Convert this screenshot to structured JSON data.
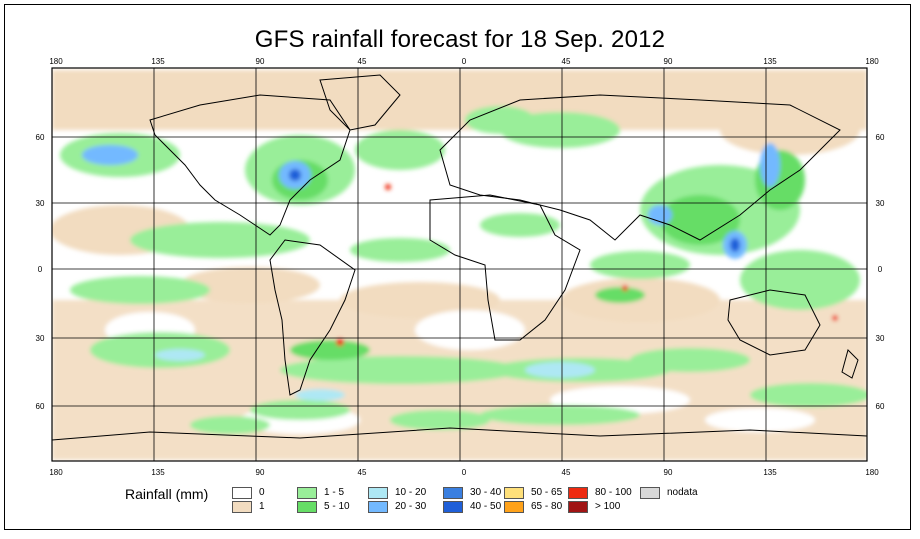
{
  "title": "GFS rainfall forecast for 18 Sep. 2012",
  "longitude_ticks": [
    "180",
    "135",
    "90",
    "45",
    "0",
    "45",
    "90",
    "135",
    "180"
  ],
  "latitude_ticks": [
    "60",
    "30",
    "0",
    "30",
    "60"
  ],
  "legend": {
    "title": "Rainfall (mm)",
    "items": [
      {
        "label": "0",
        "color": "#ffffff"
      },
      {
        "label": "1",
        "color": "#f2dcc0"
      },
      {
        "label": "1 - 5",
        "color": "#99ee99"
      },
      {
        "label": "5 - 10",
        "color": "#66dd66"
      },
      {
        "label": "10 - 20",
        "color": "#aee8f4"
      },
      {
        "label": "20 - 30",
        "color": "#73b9ff"
      },
      {
        "label": "30 - 40",
        "color": "#3a7fe0"
      },
      {
        "label": "40 - 50",
        "color": "#1f5fd8"
      },
      {
        "label": "50 - 65",
        "color": "#ffe07a"
      },
      {
        "label": "65 - 80",
        "color": "#ffa21a"
      },
      {
        "label": "80 - 100",
        "color": "#ee2a10"
      },
      {
        "label": "> 100",
        "color": "#a01414"
      },
      {
        "label": "nodata",
        "color": "#d8d8d8"
      }
    ]
  }
}
